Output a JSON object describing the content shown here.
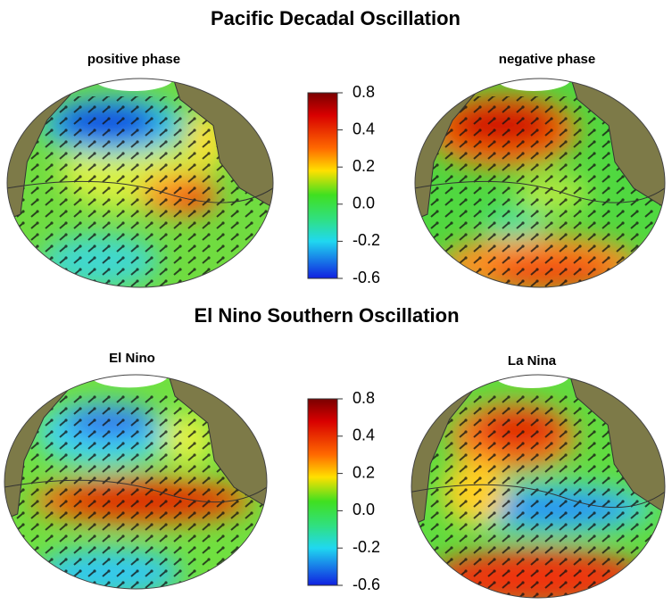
{
  "sections": [
    {
      "title": "Pacific Decadal Oscillation",
      "panels": [
        {
          "label": "positive phase"
        },
        {
          "label": "negative phase"
        }
      ],
      "colorbar": {
        "ticks": [
          0.8,
          0.4,
          0.2,
          {
            "value": 0,
            "label": "0.0"
          },
          -0.2,
          -0.6
        ]
      }
    },
    {
      "title": "El Nino Southern Oscillation",
      "panels": [
        {
          "label": "El Nino"
        },
        {
          "label": "La Nina"
        }
      ],
      "colorbar": {
        "ticks": [
          0.8,
          0.4,
          0.2,
          {
            "value": 0,
            "label": "0.0"
          },
          -0.2,
          -0.6
        ]
      }
    }
  ]
}
